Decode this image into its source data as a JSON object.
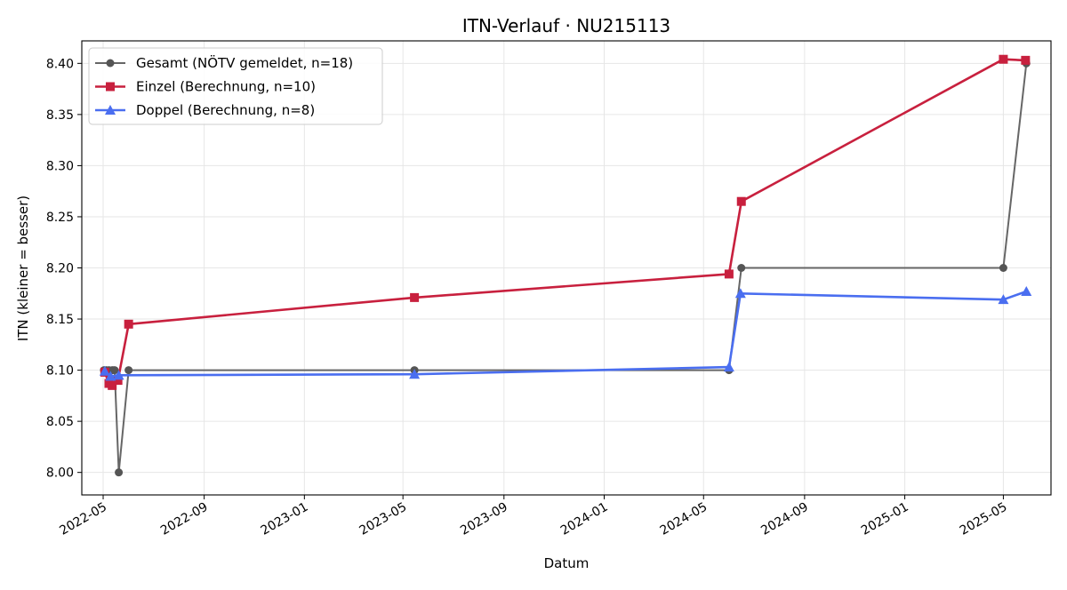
{
  "chart_data": {
    "type": "line",
    "title": "ITN-Verlauf · NU215113",
    "xlabel": "Datum",
    "ylabel": "ITN  (kleiner = besser)",
    "x_axis_type": "date",
    "xlim": [
      "2022-04-05",
      "2025-06-28"
    ],
    "ylim": [
      7.978,
      8.422
    ],
    "x_ticks": [
      "2022-05-01",
      "2022-09-01",
      "2023-01-01",
      "2023-05-01",
      "2023-09-01",
      "2024-01-01",
      "2024-05-01",
      "2024-09-01",
      "2025-01-01",
      "2025-05-01"
    ],
    "x_tick_labels": [
      "2022-05",
      "2022-09",
      "2023-01",
      "2023-05",
      "2023-09",
      "2024-01",
      "2024-05",
      "2024-09",
      "2025-01",
      "2025-05"
    ],
    "y_ticks": [
      8.0,
      8.05,
      8.1,
      8.15,
      8.2,
      8.25,
      8.3,
      8.35,
      8.4
    ],
    "y_tick_labels": [
      "8.00",
      "8.05",
      "8.10",
      "8.15",
      "8.20",
      "8.25",
      "8.30",
      "8.35",
      "8.40"
    ],
    "grid": true,
    "legend_position": "top-left",
    "series": [
      {
        "name": "Gesamt (NÖTV gemeldet, n=18)",
        "color": "#666666",
        "marker": "circle",
        "points": [
          {
            "x": "2022-05-02",
            "y": 8.1
          },
          {
            "x": "2022-05-05",
            "y": 8.1
          },
          {
            "x": "2022-05-08",
            "y": 8.1
          },
          {
            "x": "2022-05-12",
            "y": 8.1
          },
          {
            "x": "2022-05-15",
            "y": 8.1
          },
          {
            "x": "2022-05-20",
            "y": 8.0
          },
          {
            "x": "2022-06-01",
            "y": 8.1
          },
          {
            "x": "2023-05-15",
            "y": 8.1
          },
          {
            "x": "2024-06-01",
            "y": 8.1
          },
          {
            "x": "2024-06-16",
            "y": 8.2
          },
          {
            "x": "2025-05-01",
            "y": 8.2
          },
          {
            "x": "2025-05-29",
            "y": 8.4
          }
        ]
      },
      {
        "name": "Einzel (Berechnung, n=10)",
        "color": "#c8203e",
        "marker": "square",
        "points": [
          {
            "x": "2022-05-03",
            "y": 8.098
          },
          {
            "x": "2022-05-08",
            "y": 8.087
          },
          {
            "x": "2022-05-12",
            "y": 8.085
          },
          {
            "x": "2022-05-19",
            "y": 8.09
          },
          {
            "x": "2022-06-01",
            "y": 8.145
          },
          {
            "x": "2023-05-15",
            "y": 8.171
          },
          {
            "x": "2024-06-01",
            "y": 8.194
          },
          {
            "x": "2024-06-16",
            "y": 8.265
          },
          {
            "x": "2025-05-01",
            "y": 8.404
          },
          {
            "x": "2025-05-28",
            "y": 8.403
          }
        ]
      },
      {
        "name": "Doppel (Berechnung, n=8)",
        "color": "#4a6ef0",
        "marker": "triangle",
        "points": [
          {
            "x": "2022-05-03",
            "y": 8.099
          },
          {
            "x": "2022-05-10",
            "y": 8.094
          },
          {
            "x": "2022-05-20",
            "y": 8.095
          },
          {
            "x": "2023-05-15",
            "y": 8.096
          },
          {
            "x": "2024-06-01",
            "y": 8.103
          },
          {
            "x": "2024-06-15",
            "y": 8.175
          },
          {
            "x": "2025-05-01",
            "y": 8.169
          },
          {
            "x": "2025-05-29",
            "y": 8.177
          }
        ]
      }
    ]
  }
}
